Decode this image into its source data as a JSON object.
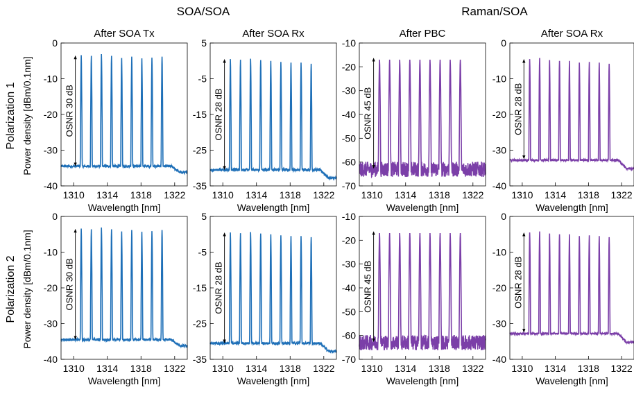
{
  "figure": {
    "group_titles": [
      "SOA/SOA",
      "Raman/SOA"
    ],
    "row_labels": [
      "Polarization 1",
      "Polarization 2"
    ],
    "ylabel": "Power density [dBm/0.1nm]",
    "xlabel": "Wavelength [nm]",
    "colors": {
      "blue": "#1f70b8",
      "purple": "#7b3fa8"
    }
  },
  "chart_data": [
    {
      "type": "line",
      "title": "After SOA Tx",
      "xlabel": "Wavelength [nm]",
      "ylim": [
        -40,
        0
      ],
      "yticks": [
        0,
        -10,
        -20,
        -30,
        -40
      ],
      "xlim": [
        1308.5,
        1323.5
      ],
      "xticks": [
        1310,
        1314,
        1318,
        1322
      ],
      "floor": -34.5,
      "floor_end": -36.2,
      "noise": 0.3,
      "peaks_x": [
        1310.9,
        1312.1,
        1313.3,
        1314.5,
        1315.7,
        1316.9,
        1318.1,
        1319.3,
        1320.5
      ],
      "peaks_y": [
        -3.4,
        -3.6,
        -3.1,
        -3.6,
        -4.2,
        -3.8,
        -4.3,
        -4.1,
        -3.8
      ],
      "annotation": "OSNR 30 dB",
      "arrow": {
        "x": 1310.2,
        "from": -4,
        "to": -34
      },
      "color": "blue"
    },
    {
      "type": "line",
      "title": "After SOA Rx",
      "xlabel": "Wavelength [nm]",
      "ylim": [
        -35,
        5
      ],
      "yticks": [
        5,
        -5,
        -15,
        -25,
        -35
      ],
      "xlim": [
        1308.5,
        1323.5
      ],
      "xticks": [
        1310,
        1314,
        1318,
        1322
      ],
      "floor": -30.5,
      "floor_end": -32.8,
      "noise": 0.3,
      "peaks_x": [
        1310.9,
        1312.1,
        1313.3,
        1314.5,
        1315.7,
        1316.9,
        1318.1,
        1319.3,
        1320.5
      ],
      "peaks_y": [
        0.5,
        0.3,
        0.6,
        0.2,
        0.0,
        -0.3,
        -0.5,
        -0.5,
        -0.8
      ],
      "annotation": "OSNR 28 dB",
      "arrow": {
        "x": 1310.2,
        "from": 0,
        "to": -30
      },
      "color": "blue"
    },
    {
      "type": "line",
      "title": "After PBC",
      "xlabel": "Wavelength [nm]",
      "ylim": [
        -70,
        -10
      ],
      "yticks": [
        -10,
        -20,
        -30,
        -40,
        -50,
        -60,
        -70
      ],
      "xlim": [
        1308.5,
        1323.5
      ],
      "xticks": [
        1310,
        1314,
        1318,
        1322
      ],
      "floor": -63,
      "floor_end": -63,
      "noise": 3.2,
      "peaks_x": [
        1310.9,
        1312.1,
        1313.3,
        1314.5,
        1315.7,
        1316.9,
        1318.1,
        1319.3,
        1320.5
      ],
      "peaks_y": [
        -17,
        -17,
        -17,
        -17,
        -17,
        -17,
        -17,
        -17,
        -17
      ],
      "annotation": "OSNR 45 dB",
      "arrow": {
        "x": 1310.2,
        "from": -17,
        "to": -62
      },
      "color": "purple"
    },
    {
      "type": "line",
      "title": "After SOA Rx",
      "xlabel": "Wavelength [nm]",
      "ylim": [
        -40,
        0
      ],
      "yticks": [
        0,
        -10,
        -20,
        -30,
        -40
      ],
      "xlim": [
        1308.5,
        1323.5
      ],
      "xticks": [
        1310,
        1314,
        1318,
        1322
      ],
      "floor": -32.8,
      "floor_end": -35.2,
      "noise": 0.2,
      "peaks_x": [
        1310.9,
        1312.1,
        1313.3,
        1314.5,
        1315.7,
        1316.9,
        1318.1,
        1319.3,
        1320.5
      ],
      "peaks_y": [
        -4.5,
        -4.2,
        -4.8,
        -5.0,
        -5.0,
        -5.5,
        -5.3,
        -5.5,
        -5.8
      ],
      "annotation": "OSNR 28 dB",
      "arrow": {
        "x": 1310.2,
        "from": -5,
        "to": -32
      },
      "color": "purple"
    },
    {
      "type": "line",
      "title": "",
      "xlabel": "Wavelength [nm]",
      "ylim": [
        -40,
        0
      ],
      "yticks": [
        0,
        -10,
        -20,
        -30,
        -40
      ],
      "xlim": [
        1308.5,
        1323.5
      ],
      "xticks": [
        1310,
        1314,
        1318,
        1322
      ],
      "floor": -34.5,
      "floor_end": -36.2,
      "noise": 0.3,
      "peaks_x": [
        1310.9,
        1312.1,
        1313.3,
        1314.5,
        1315.7,
        1316.9,
        1318.1,
        1319.3,
        1320.5
      ],
      "peaks_y": [
        -3.4,
        -3.6,
        -3.1,
        -3.6,
        -4.2,
        -3.8,
        -4.3,
        -4.1,
        -3.8
      ],
      "annotation": "OSNR 30 dB",
      "arrow": {
        "x": 1310.2,
        "from": -4,
        "to": -34
      },
      "color": "blue"
    },
    {
      "type": "line",
      "title": "",
      "xlabel": "Wavelength [nm]",
      "ylim": [
        -35,
        5
      ],
      "yticks": [
        5,
        -5,
        -15,
        -25,
        -35
      ],
      "xlim": [
        1308.5,
        1323.5
      ],
      "xticks": [
        1310,
        1314,
        1318,
        1322
      ],
      "floor": -30.5,
      "floor_end": -32.8,
      "noise": 0.3,
      "peaks_x": [
        1310.9,
        1312.1,
        1313.3,
        1314.5,
        1315.7,
        1316.9,
        1318.1,
        1319.3,
        1320.5
      ],
      "peaks_y": [
        0.5,
        0.3,
        0.6,
        0.2,
        0.0,
        -0.3,
        -0.5,
        -0.5,
        -0.8
      ],
      "annotation": "OSNR 28 dB",
      "arrow": {
        "x": 1310.2,
        "from": 0,
        "to": -30
      },
      "color": "blue"
    },
    {
      "type": "line",
      "title": "",
      "xlabel": "Wavelength [nm]",
      "ylim": [
        -70,
        -10
      ],
      "yticks": [
        -10,
        -20,
        -30,
        -40,
        -50,
        -60,
        -70
      ],
      "xlim": [
        1308.5,
        1323.5
      ],
      "xticks": [
        1310,
        1314,
        1318,
        1322
      ],
      "floor": -63,
      "floor_end": -63,
      "noise": 3.2,
      "peaks_x": [
        1310.9,
        1312.1,
        1313.3,
        1314.5,
        1315.7,
        1316.9,
        1318.1,
        1319.3,
        1320.5
      ],
      "peaks_y": [
        -17,
        -17,
        -17,
        -17,
        -17,
        -17,
        -17,
        -17,
        -17
      ],
      "annotation": "OSNR 45 dB",
      "arrow": {
        "x": 1310.2,
        "from": -17,
        "to": -62
      },
      "color": "purple"
    },
    {
      "type": "line",
      "title": "",
      "xlabel": "Wavelength [nm]",
      "ylim": [
        -40,
        0
      ],
      "yticks": [
        0,
        -10,
        -20,
        -30,
        -40
      ],
      "xlim": [
        1308.5,
        1323.5
      ],
      "xticks": [
        1310,
        1314,
        1318,
        1322
      ],
      "floor": -32.8,
      "floor_end": -35.2,
      "noise": 0.2,
      "peaks_x": [
        1310.9,
        1312.1,
        1313.3,
        1314.5,
        1315.7,
        1316.9,
        1318.1,
        1319.3,
        1320.5
      ],
      "peaks_y": [
        -4.5,
        -4.2,
        -4.8,
        -5.0,
        -5.0,
        -5.5,
        -5.3,
        -5.5,
        -5.8
      ],
      "annotation": "OSNR 28 dB",
      "arrow": {
        "x": 1310.2,
        "from": -5,
        "to": -32
      },
      "color": "purple"
    }
  ]
}
